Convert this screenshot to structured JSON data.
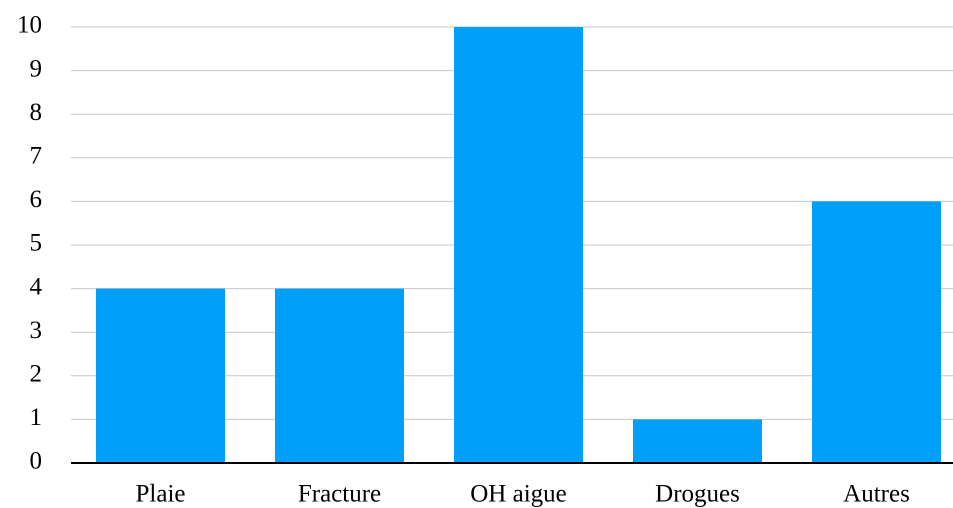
{
  "chart_data": {
    "type": "bar",
    "categories": [
      "Plaie",
      "Fracture",
      "OH aigue",
      "Drogues",
      "Autres"
    ],
    "values": [
      4,
      4,
      10,
      1,
      6
    ],
    "color": "#009ff9",
    "ylim": [
      0,
      10
    ],
    "yticks": [
      0,
      1,
      2,
      3,
      4,
      5,
      6,
      7,
      8,
      9,
      10
    ],
    "grid": true
  }
}
